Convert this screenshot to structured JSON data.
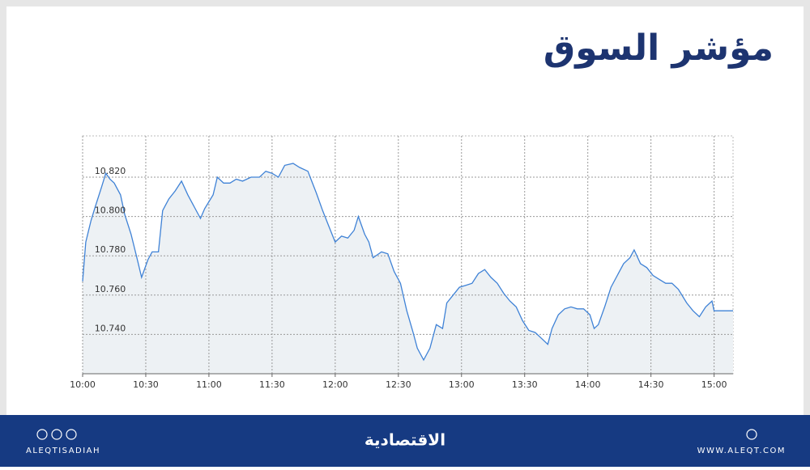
{
  "chart_data": {
    "type": "line",
    "title": "مؤشر السوق",
    "x": [
      600,
      601.5,
      604,
      606,
      609,
      611,
      613,
      615,
      618,
      620,
      623,
      626,
      628,
      631,
      633,
      636,
      638,
      641,
      644,
      647,
      650,
      653,
      656,
      658,
      662,
      664,
      667,
      670,
      673,
      676,
      680,
      684,
      687,
      690,
      693,
      696,
      700,
      703,
      707,
      711,
      714,
      717,
      720,
      723,
      726,
      729,
      731,
      734,
      736,
      738,
      742,
      745,
      748,
      751,
      754,
      757,
      759,
      762,
      765,
      768,
      771,
      773,
      776,
      779,
      782,
      785,
      788,
      791,
      794,
      797,
      800,
      803,
      806,
      809,
      812,
      815,
      818,
      821,
      823,
      826,
      829,
      832,
      835,
      838,
      841,
      843,
      845,
      848,
      851,
      854,
      857,
      860,
      862,
      865,
      868,
      871,
      874,
      877,
      880,
      883,
      887,
      890,
      893,
      896,
      899,
      900,
      905,
      909
    ],
    "series": [
      {
        "color": "#3f82d6",
        "values": [
          10.767,
          10.787,
          10.798,
          10.805,
          10.815,
          10.822,
          10.819,
          10.817,
          10.811,
          10.801,
          10.791,
          10.778,
          10.769,
          10.778,
          10.782,
          10.782,
          10.803,
          10.809,
          10.813,
          10.818,
          10.811,
          10.805,
          10.799,
          10.804,
          10.811,
          10.82,
          10.817,
          10.817,
          10.819,
          10.818,
          10.82,
          10.82,
          10.823,
          10.822,
          10.82,
          10.826,
          10.827,
          10.825,
          10.823,
          10.812,
          10.803,
          10.795,
          10.787,
          10.79,
          10.789,
          10.793,
          10.8,
          10.791,
          10.787,
          10.779,
          10.782,
          10.781,
          10.772,
          10.766,
          10.752,
          10.741,
          10.733,
          10.727,
          10.733,
          10.745,
          10.743,
          10.756,
          10.76,
          10.764,
          10.765,
          10.766,
          10.771,
          10.773,
          10.769,
          10.766,
          10.761,
          10.757,
          10.754,
          10.747,
          10.742,
          10.741,
          10.738,
          10.735,
          10.743,
          10.75,
          10.753,
          10.754,
          10.753,
          10.753,
          10.75,
          10.743,
          10.745,
          10.754,
          10.764,
          10.77,
          10.776,
          10.779,
          10.783,
          10.776,
          10.774,
          10.77,
          10.768,
          10.766,
          10.766,
          10.763,
          10.756,
          10.752,
          10.749,
          10.754,
          10.757,
          10.752,
          10.752,
          10.752
        ]
      }
    ],
    "xlim": [
      600,
      909
    ],
    "xticks": [
      {
        "value": 600,
        "label": "10:00"
      },
      {
        "value": 630,
        "label": "10:30"
      },
      {
        "value": 660,
        "label": "11:00"
      },
      {
        "value": 690,
        "label": "11:30"
      },
      {
        "value": 720,
        "label": "12:00"
      },
      {
        "value": 750,
        "label": "12:30"
      },
      {
        "value": 780,
        "label": "13:00"
      },
      {
        "value": 810,
        "label": "13:30"
      },
      {
        "value": 840,
        "label": "14:00"
      },
      {
        "value": 870,
        "label": "14:30"
      },
      {
        "value": 900,
        "label": "15:00"
      }
    ],
    "ylim": [
      10.72,
      10.841
    ],
    "yticks": [
      {
        "value": 10.74,
        "label": "10.740"
      },
      {
        "value": 10.76,
        "label": "10.760"
      },
      {
        "value": 10.78,
        "label": "10.780"
      },
      {
        "value": 10.8,
        "label": "10.800"
      },
      {
        "value": 10.82,
        "label": "10.820"
      }
    ],
    "grid": true
  },
  "footer": {
    "handle": "ALEQTISADIAH",
    "logo": "الاقتصادية",
    "website": "WWW.ALEQT.COM"
  }
}
